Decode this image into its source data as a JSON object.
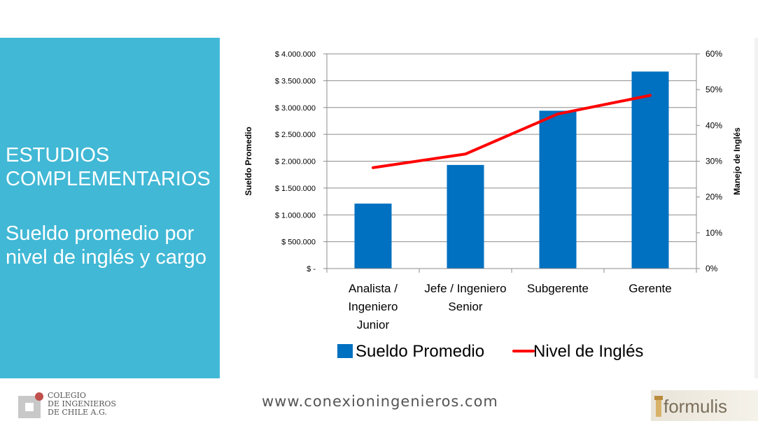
{
  "slide": {
    "heading_line1": "ESTUDIOS",
    "heading_line2": "COMPLEMENTARIOS",
    "subheading_line1": "Sueldo promedio por",
    "subheading_line2": "nivel de inglés y cargo",
    "panel_color": "#41b8d5"
  },
  "footer": {
    "url": "www.conexioningenieros.com",
    "logo_line1": "Colegio",
    "logo_line2": "de Ingenieros",
    "logo_line3": "de Chile A.G.",
    "partner_logo": "formulis"
  },
  "chart_data": {
    "type": "bar",
    "categories": [
      [
        "Analista /",
        "Ingeniero",
        "Junior"
      ],
      [
        "Jefe / Ingeniero",
        "Senior"
      ],
      [
        "Subgerente"
      ],
      [
        "Gerente"
      ]
    ],
    "series": [
      {
        "name": "Sueldo Promedio",
        "type": "bar",
        "axis": "left",
        "color": "#0070c0",
        "values": [
          1210000,
          1930000,
          2940000,
          3670000
        ]
      },
      {
        "name": "Nivel de Inglés",
        "type": "line",
        "axis": "right",
        "color": "#ff0000",
        "values": [
          0.282,
          0.32,
          0.432,
          0.484
        ]
      }
    ],
    "ylabel": "Sueldo Promedio",
    "y2label": "Manejo de Inglés",
    "ylim": [
      0,
      4000000
    ],
    "y2lim": [
      0,
      0.6
    ],
    "yticks": [
      "$ -",
      "$ 500.000",
      "$ 1.000.000",
      "$ 1.500.000",
      "$ 2.000.000",
      "$ 2.500.000",
      "$ 3.000.000",
      "$ 3.500.000",
      "$ 4.000.000"
    ],
    "y2ticks": [
      "0%",
      "10%",
      "20%",
      "30%",
      "40%",
      "50%",
      "60%"
    ],
    "grid": true,
    "legend": "bottom"
  }
}
